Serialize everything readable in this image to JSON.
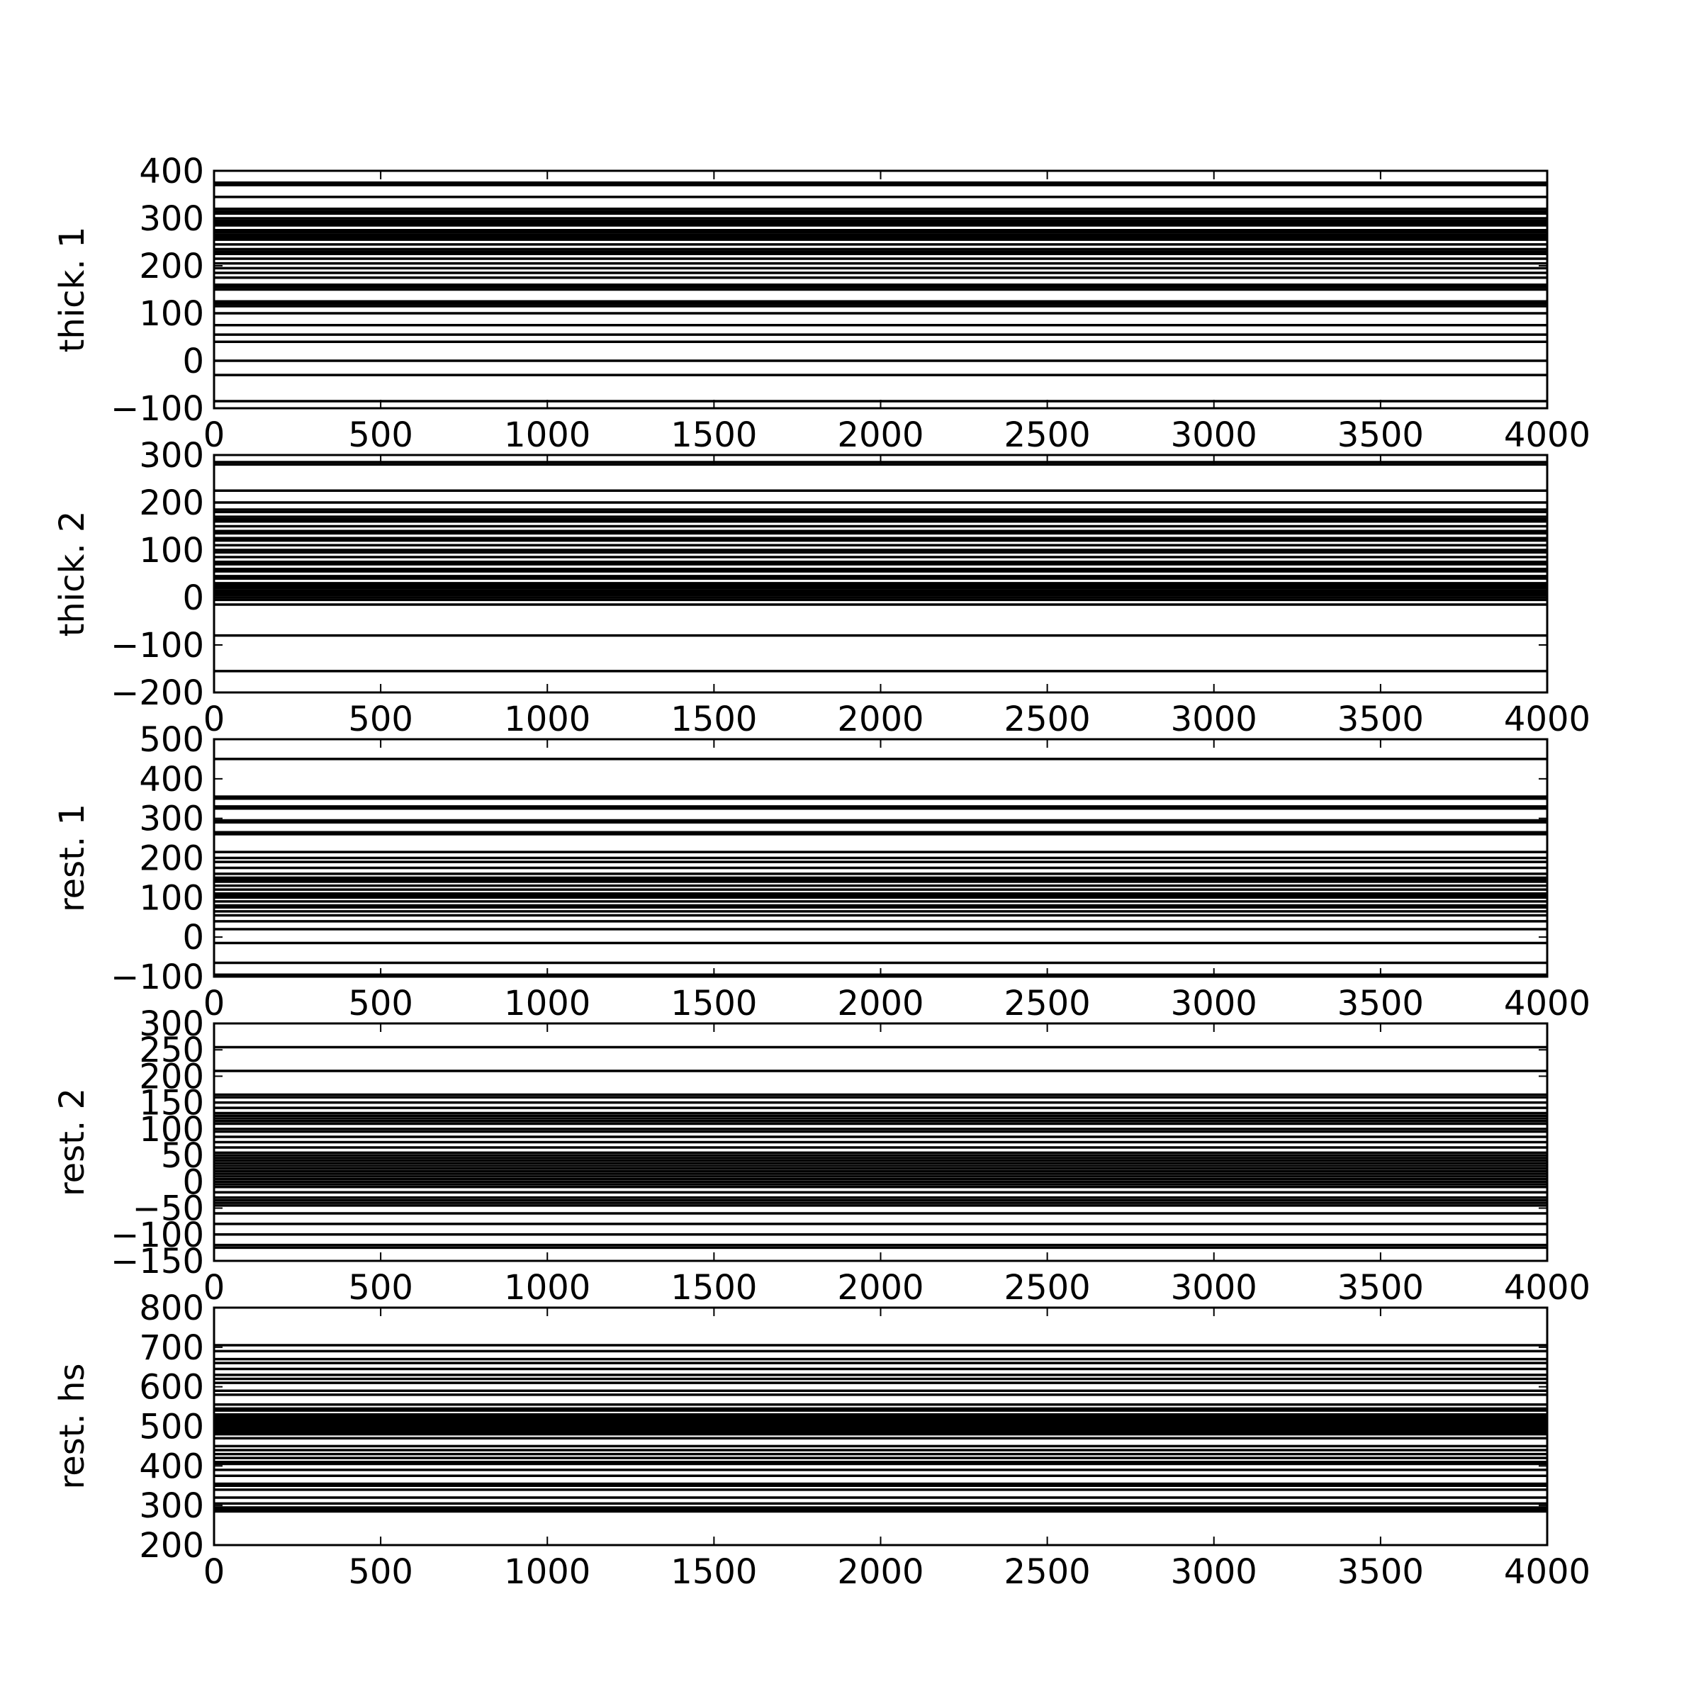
{
  "chart_data": [
    {
      "type": "line",
      "ylabel": "thick. 1",
      "xlim": [
        0,
        4000
      ],
      "ylim": [
        -100,
        400
      ],
      "x_ticks": [
        0,
        500,
        1000,
        1500,
        2000,
        2500,
        3000,
        3500,
        4000
      ],
      "y_ticks": [
        -100,
        0,
        100,
        200,
        300,
        400
      ],
      "grid": false,
      "series": [
        {
          "color": "#000000",
          "constant_values": [
            -85,
            -30,
            0,
            40,
            55,
            75,
            100,
            115,
            120,
            125,
            150,
            155,
            160,
            175,
            185,
            195,
            205,
            215,
            225,
            230,
            235,
            245,
            255,
            260,
            265,
            270,
            275,
            285,
            290,
            295,
            300,
            310,
            315,
            320,
            345,
            370,
            375
          ]
        }
      ]
    },
    {
      "type": "line",
      "ylabel": "thick. 2",
      "xlim": [
        0,
        4000
      ],
      "ylim": [
        -200,
        300
      ],
      "x_ticks": [
        0,
        500,
        1000,
        1500,
        2000,
        2500,
        3000,
        3500,
        4000
      ],
      "y_ticks": [
        -200,
        -100,
        0,
        100,
        200,
        300
      ],
      "grid": false,
      "series": [
        {
          "color": "#000000",
          "constant_values": [
            -155,
            -80,
            -15,
            -5,
            0,
            5,
            10,
            15,
            20,
            25,
            30,
            40,
            45,
            55,
            60,
            70,
            75,
            85,
            95,
            100,
            110,
            120,
            125,
            135,
            140,
            150,
            160,
            165,
            170,
            180,
            185,
            200,
            225,
            280,
            285
          ]
        }
      ]
    },
    {
      "type": "line",
      "ylabel": "rest. 1",
      "xlim": [
        0,
        4000
      ],
      "ylim": [
        -100,
        500
      ],
      "x_ticks": [
        0,
        500,
        1000,
        1500,
        2000,
        2500,
        3000,
        3500,
        4000
      ],
      "y_ticks": [
        -100,
        0,
        100,
        200,
        300,
        400,
        500
      ],
      "grid": false,
      "series": [
        {
          "color": "#000000",
          "constant_values": [
            -95,
            -65,
            -15,
            20,
            40,
            55,
            65,
            75,
            80,
            90,
            100,
            105,
            110,
            120,
            130,
            140,
            145,
            150,
            160,
            175,
            190,
            200,
            215,
            260,
            265,
            290,
            295,
            325,
            330,
            350,
            355,
            450
          ]
        }
      ]
    },
    {
      "type": "line",
      "ylabel": "rest. 2",
      "xlim": [
        0,
        4000
      ],
      "ylim": [
        -150,
        300
      ],
      "x_ticks": [
        0,
        500,
        1000,
        1500,
        2000,
        2500,
        3000,
        3500,
        4000
      ],
      "y_ticks": [
        -150,
        -100,
        -50,
        0,
        50,
        100,
        150,
        200,
        250,
        300
      ],
      "grid": false,
      "series": [
        {
          "color": "#000000",
          "constant_values": [
            -125,
            -120,
            -100,
            -80,
            -60,
            -45,
            -40,
            -35,
            -30,
            -20,
            -10,
            -5,
            0,
            5,
            10,
            15,
            20,
            25,
            30,
            35,
            40,
            45,
            50,
            55,
            65,
            75,
            85,
            95,
            100,
            110,
            115,
            120,
            125,
            130,
            140,
            150,
            160,
            165,
            210,
            255
          ]
        }
      ]
    },
    {
      "type": "line",
      "ylabel": "rest. hs",
      "xlim": [
        0,
        4000
      ],
      "ylim": [
        200,
        800
      ],
      "x_ticks": [
        0,
        500,
        1000,
        1500,
        2000,
        2500,
        3000,
        3500,
        4000
      ],
      "y_ticks": [
        200,
        300,
        400,
        500,
        600,
        700,
        800
      ],
      "grid": false,
      "series": [
        {
          "color": "#000000",
          "constant_values": [
            285,
            290,
            295,
            305,
            320,
            340,
            350,
            355,
            375,
            390,
            405,
            410,
            420,
            430,
            440,
            450,
            470,
            480,
            485,
            490,
            495,
            500,
            505,
            510,
            515,
            520,
            525,
            530,
            540,
            545,
            555,
            580,
            590,
            610,
            620,
            630,
            645,
            660,
            670,
            690,
            705
          ]
        }
      ]
    }
  ]
}
